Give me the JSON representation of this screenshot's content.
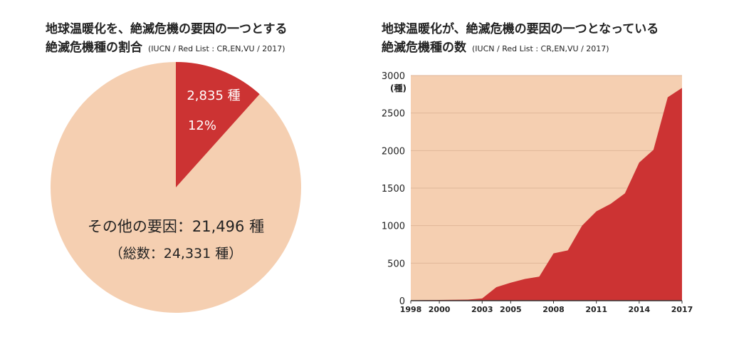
{
  "left": {
    "title_line1": "地球温暖化を、絶滅危機の要因の一つとする",
    "title_line2": "絶滅危機種の割合",
    "source": "(IUCN / Red List : CR,EN,VU / 2017)"
  },
  "right": {
    "title_line1": "地球温暖化が、絶滅危機の要因の一つとなっている",
    "title_line2": "絶滅危機種の数",
    "source": "(IUCN / Red List : CR,EN,VU / 2017)"
  },
  "colors": {
    "accent": "#cc3333",
    "background_fill": "#f5cfb1",
    "grid": "#e0b79a"
  },
  "chart_data": [
    {
      "type": "pie",
      "slices": [
        {
          "label": "2,835 種",
          "percent_label": "12%",
          "value": 2835,
          "color": "#cc3333"
        },
        {
          "label": "その他の要因：21,496 種",
          "value": 21496,
          "color": "#f5cfb1"
        }
      ],
      "total_label": "（総数：24,331 種）"
    },
    {
      "type": "area",
      "ylabel": "(種)",
      "ylim": [
        0,
        3000
      ],
      "yticks": [
        0,
        500,
        1000,
        1500,
        2000,
        2500,
        3000
      ],
      "xlim": [
        1998,
        2017
      ],
      "xticks": [
        1998,
        2000,
        2003,
        2005,
        2008,
        2011,
        2014,
        2017
      ],
      "grid": true,
      "x": [
        1998,
        1999,
        2000,
        2001,
        2002,
        2003,
        2004,
        2005,
        2006,
        2007,
        2008,
        2009,
        2010,
        2011,
        2012,
        2013,
        2014,
        2015,
        2016,
        2017
      ],
      "values": [
        5,
        8,
        10,
        12,
        14,
        30,
        180,
        240,
        290,
        320,
        630,
        670,
        1000,
        1190,
        1290,
        1430,
        1840,
        2010,
        2710,
        2835
      ],
      "color": "#cc3333"
    }
  ]
}
